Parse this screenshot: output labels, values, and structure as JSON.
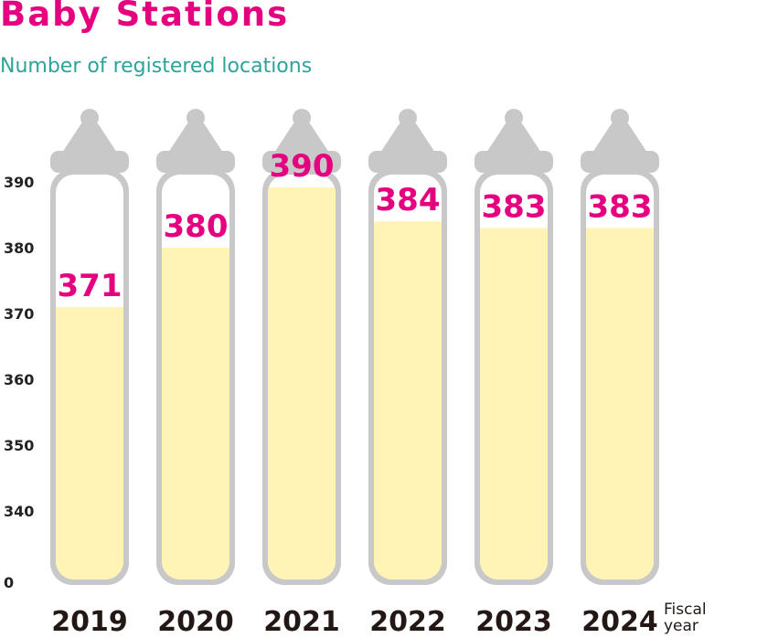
{
  "title": "Baby Stations",
  "subtitle": "Number of registered locations",
  "colors": {
    "title": "#e4007f",
    "subtitle": "#2fa39a",
    "bottle": "#c8c8c8",
    "fill": "#fff3b5",
    "value": "#e4007f"
  },
  "chart_data": {
    "type": "bar",
    "title": "Baby Stations",
    "subtitle": "Number of registered locations",
    "categories": [
      "2019",
      "2020",
      "2021",
      "2022",
      "2023",
      "2024"
    ],
    "values": [
      371,
      380,
      390,
      384,
      383,
      383
    ],
    "value_labels": [
      "371",
      "380",
      "390",
      "384",
      "383",
      "383"
    ],
    "y_ticks": [
      "0",
      "340",
      "350",
      "360",
      "370",
      "380",
      "390"
    ],
    "axis_break": true,
    "xlabel": "Fiscal year",
    "xlabel_lines": [
      "Fiscal",
      "year"
    ],
    "grid": false,
    "legend": "none"
  }
}
